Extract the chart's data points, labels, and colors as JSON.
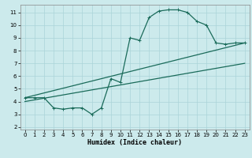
{
  "xlabel": "Humidex (Indice chaleur)",
  "bg_color": "#cceaec",
  "grid_color": "#aad4d8",
  "line_color": "#1a6b5a",
  "xlim": [
    -0.5,
    23.5
  ],
  "ylim": [
    1.8,
    11.6
  ],
  "xticks": [
    0,
    1,
    2,
    3,
    4,
    5,
    6,
    7,
    8,
    9,
    10,
    11,
    12,
    13,
    14,
    15,
    16,
    17,
    18,
    19,
    20,
    21,
    22,
    23
  ],
  "yticks": [
    2,
    3,
    4,
    5,
    6,
    7,
    8,
    9,
    10,
    11
  ],
  "curve1_x": [
    0,
    1,
    2,
    3,
    4,
    5,
    6,
    7,
    8,
    9,
    10,
    11,
    12,
    13,
    14,
    15,
    16,
    17,
    18,
    19,
    20,
    21,
    22,
    23
  ],
  "curve1_y": [
    4.3,
    4.3,
    4.3,
    3.5,
    3.4,
    3.5,
    3.5,
    3.0,
    3.5,
    5.8,
    5.5,
    9.0,
    8.8,
    10.6,
    11.1,
    11.2,
    11.2,
    11.0,
    10.3,
    10.0,
    8.6,
    8.5,
    8.6,
    8.6
  ],
  "curve2_x": [
    0,
    23
  ],
  "curve2_y": [
    4.3,
    8.6
  ],
  "curve3_x": [
    0,
    23
  ],
  "curve3_y": [
    4.0,
    7.0
  ],
  "marker": "+",
  "markersize": 3.5,
  "linewidth": 0.9
}
